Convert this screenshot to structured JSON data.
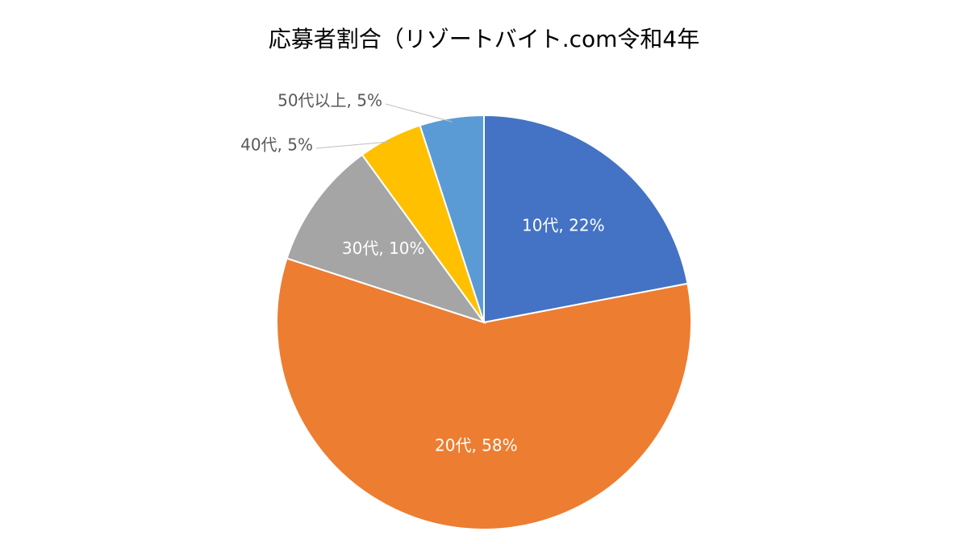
{
  "chart_data": {
    "type": "pie",
    "title": "応募者割合（リゾートバイト.com令和4年",
    "categories": [
      "10代",
      "20代",
      "30代",
      "40代",
      "50代以上"
    ],
    "values": [
      22,
      58,
      10,
      5,
      5
    ],
    "value_labels": [
      "10代, 22%",
      "20代, 58%",
      "30代, 10%",
      "40代, 5%",
      "50代以上, 5%"
    ],
    "colors": [
      "#4472c4",
      "#ed7d31",
      "#a5a5a5",
      "#ffc000",
      "#5b9bd5"
    ]
  }
}
